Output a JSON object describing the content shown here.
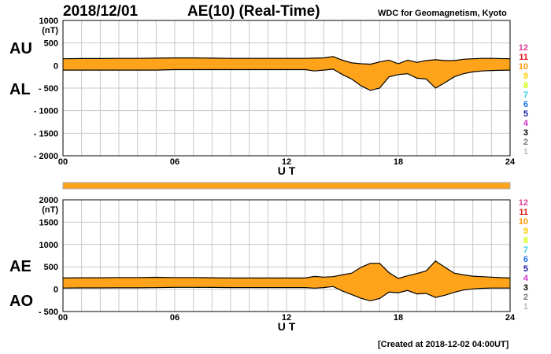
{
  "header": {
    "date": "2018/12/01",
    "title": "AE(10) (Real-Time)",
    "source": "WDC for Geomagnetism, Kyoto",
    "created": "[Created at 2018-12-02 04:00UT]"
  },
  "labels": {
    "au": "AU",
    "al": "AL",
    "ae": "AE",
    "ao": "AO"
  },
  "station_scale": {
    "items": [
      {
        "label": "12",
        "color": "#e0409b"
      },
      {
        "label": "11",
        "color": "#e01a1a"
      },
      {
        "label": "10",
        "color": "#ff9900"
      },
      {
        "label": "9",
        "color": "#ffcc00"
      },
      {
        "label": "8",
        "color": "#ccff00"
      },
      {
        "label": "7",
        "color": "#33ccee"
      },
      {
        "label": "6",
        "color": "#1a73e8"
      },
      {
        "label": "5",
        "color": "#1a1aa8"
      },
      {
        "label": "4",
        "color": "#cc33cc"
      },
      {
        "label": "3",
        "color": "#000000"
      },
      {
        "label": "2",
        "color": "#777777"
      },
      {
        "label": "1",
        "color": "#bbbbbb"
      }
    ]
  },
  "chart_data": [
    {
      "type": "area",
      "series": [
        {
          "name": "AU",
          "x": [
            0,
            1,
            2,
            3,
            4,
            5,
            6,
            7,
            8,
            9,
            10,
            11,
            12,
            13,
            13.5,
            14,
            14.5,
            15,
            15.5,
            16,
            16.5,
            17,
            17.5,
            18,
            18.5,
            19,
            19.5,
            20,
            20.5,
            21,
            21.5,
            22,
            22.5,
            23,
            24
          ],
          "values": [
            150,
            155,
            155,
            160,
            160,
            165,
            170,
            170,
            165,
            160,
            160,
            160,
            160,
            160,
            165,
            170,
            200,
            120,
            60,
            40,
            30,
            80,
            120,
            40,
            120,
            70,
            110,
            130,
            110,
            110,
            140,
            150,
            160,
            160,
            150
          ]
        },
        {
          "name": "AL",
          "x": [
            0,
            1,
            2,
            3,
            4,
            5,
            6,
            7,
            8,
            9,
            10,
            11,
            12,
            13,
            13.5,
            14,
            14.5,
            15,
            15.5,
            16,
            16.5,
            17,
            17.5,
            18,
            18.5,
            19,
            19.5,
            20,
            20.5,
            21,
            21.5,
            22,
            22.5,
            23,
            24
          ],
          "values": [
            -100,
            -100,
            -100,
            -100,
            -100,
            -100,
            -90,
            -90,
            -90,
            -90,
            -90,
            -90,
            -90,
            -90,
            -120,
            -100,
            -80,
            -200,
            -300,
            -450,
            -550,
            -500,
            -250,
            -200,
            -180,
            -280,
            -300,
            -500,
            -380,
            -250,
            -180,
            -140,
            -120,
            -110,
            -100
          ]
        }
      ],
      "xlabel": "U T",
      "ylabel": "(nT)",
      "xlim": [
        0,
        24
      ],
      "ylim": [
        -2000,
        1000
      ],
      "xticks": [
        "00",
        "06",
        "12",
        "18",
        "24"
      ],
      "yticks": [
        "1000",
        "500",
        "0",
        "- 500",
        "- 1000",
        "- 1500",
        "- 2000"
      ],
      "fill_color": "#ffa31a",
      "grid": true
    },
    {
      "type": "area",
      "series": [
        {
          "name": "AE",
          "x": [
            0,
            1,
            2,
            3,
            4,
            5,
            6,
            7,
            8,
            9,
            10,
            11,
            12,
            13,
            13.5,
            14,
            14.5,
            15,
            15.5,
            16,
            16.5,
            17,
            17.5,
            18,
            18.5,
            19,
            19.5,
            20,
            20.5,
            21,
            21.5,
            22,
            22.5,
            23,
            24
          ],
          "values": [
            250,
            255,
            255,
            260,
            260,
            265,
            260,
            260,
            255,
            250,
            250,
            250,
            250,
            250,
            285,
            270,
            280,
            320,
            360,
            490,
            580,
            580,
            370,
            240,
            300,
            350,
            410,
            630,
            490,
            360,
            320,
            290,
            280,
            270,
            250
          ]
        },
        {
          "name": "AO",
          "x": [
            0,
            1,
            2,
            3,
            4,
            5,
            6,
            7,
            8,
            9,
            10,
            11,
            12,
            13,
            13.5,
            14,
            14.5,
            15,
            15.5,
            16,
            16.5,
            17,
            17.5,
            18,
            18.5,
            19,
            19.5,
            20,
            20.5,
            21,
            21.5,
            22,
            22.5,
            23,
            24
          ],
          "values": [
            25,
            28,
            28,
            30,
            30,
            33,
            40,
            40,
            38,
            35,
            35,
            35,
            35,
            35,
            23,
            35,
            60,
            -40,
            -120,
            -205,
            -260,
            -210,
            -65,
            -80,
            -30,
            -105,
            -95,
            -185,
            -135,
            -70,
            -20,
            5,
            20,
            25,
            25
          ]
        }
      ],
      "xlabel": "U T",
      "ylabel": "(nT)",
      "xlim": [
        0,
        24
      ],
      "ylim": [
        -500,
        2000
      ],
      "xticks": [
        "00",
        "06",
        "12",
        "18",
        "24"
      ],
      "yticks": [
        "2000",
        "1500",
        "1000",
        "500",
        "0",
        "- 500"
      ],
      "fill_color": "#ffa31a",
      "grid": true
    }
  ]
}
